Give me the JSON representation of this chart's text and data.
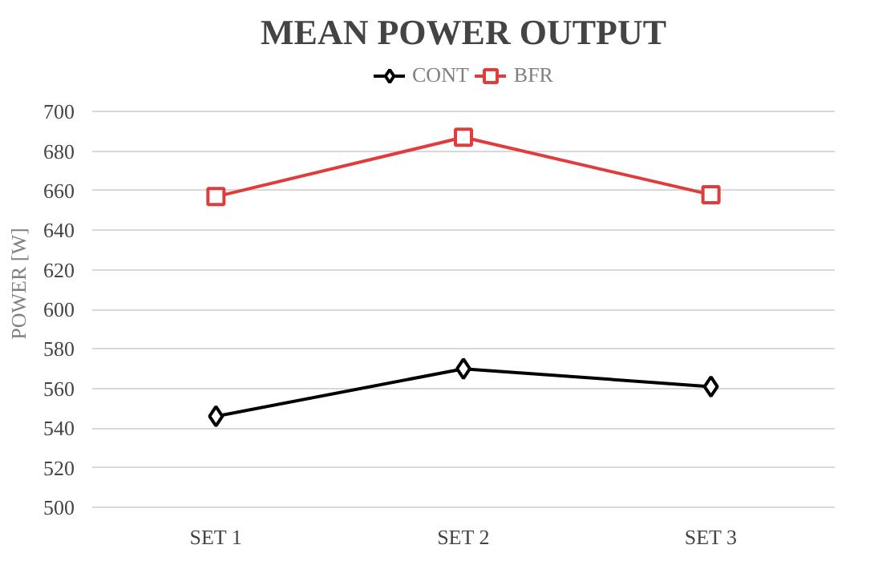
{
  "chart_data": {
    "type": "line",
    "title": "MEAN POWER OUTPUT",
    "ylabel": "POWER [W]",
    "categories": [
      "SET 1",
      "SET 2",
      "SET 3"
    ],
    "series": [
      {
        "name": "CONT",
        "color": "#000000",
        "marker": "diamond",
        "values": [
          546,
          570,
          561
        ]
      },
      {
        "name": "BFR",
        "color": "#e03c3c",
        "marker": "square",
        "values": [
          657,
          687,
          658
        ]
      }
    ],
    "ylim": [
      500,
      700
    ],
    "yticks": [
      500,
      520,
      540,
      560,
      580,
      600,
      620,
      640,
      660,
      680,
      700
    ],
    "grid": "y",
    "legend": "top",
    "line_style": "solid"
  }
}
